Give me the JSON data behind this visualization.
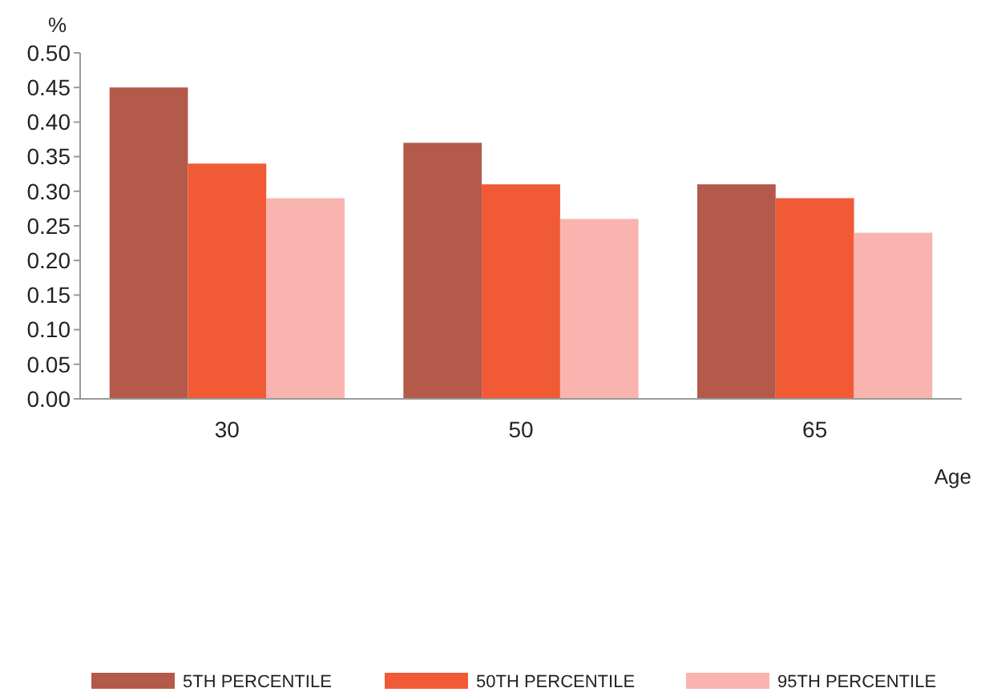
{
  "chart_data": {
    "type": "bar",
    "categories": [
      "30",
      "50",
      "65"
    ],
    "xlabel": "Age",
    "ylabel": "%",
    "series": [
      {
        "name": "5TH PERCENTILE",
        "color": "#b35a4a",
        "values": [
          0.45,
          0.37,
          0.31
        ]
      },
      {
        "name": "50TH PERCENTILE",
        "color": "#f05a35",
        "values": [
          0.34,
          0.31,
          0.29
        ]
      },
      {
        "name": "95TH PERCENTILE",
        "color": "#f9b4b0",
        "values": [
          0.29,
          0.26,
          0.24
        ]
      }
    ],
    "ylim": [
      0,
      0.5
    ],
    "yticks": [
      {
        "value": 0,
        "label": "0.00"
      },
      {
        "value": 0.05,
        "label": "0.05"
      },
      {
        "value": 0.1,
        "label": "0.10"
      },
      {
        "value": 0.15,
        "label": "0.15"
      },
      {
        "value": 0.2,
        "label": "0.20"
      },
      {
        "value": 0.25,
        "label": "0.25"
      },
      {
        "value": 0.3,
        "label": "0.30"
      },
      {
        "value": 0.35,
        "label": "0.35"
      },
      {
        "value": 0.4,
        "label": "0.40"
      },
      {
        "value": 0.45,
        "label": "0.45"
      },
      {
        "value": 0.5,
        "label": "0.50"
      }
    ],
    "grid": false,
    "legend": "bottom"
  }
}
